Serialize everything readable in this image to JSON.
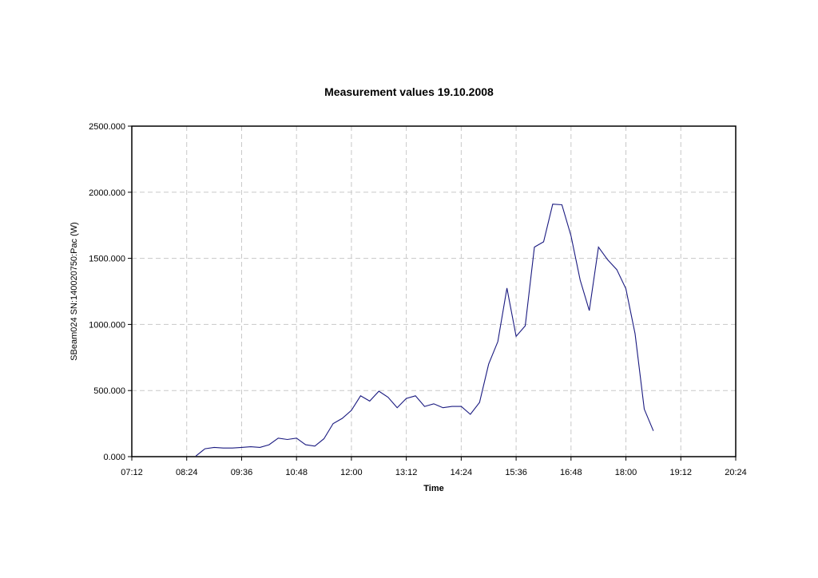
{
  "chart_data": {
    "type": "line",
    "title": "Measurement values 19.10.2008",
    "xlabel": "Time",
    "ylabel": "SBeam024 SN:140020750:Pac (W)",
    "xlim": [
      "07:12",
      "20:24"
    ],
    "ylim": [
      0,
      2500
    ],
    "x_ticks": [
      "07:12",
      "08:24",
      "09:36",
      "10:48",
      "12:00",
      "13:12",
      "14:24",
      "15:36",
      "16:48",
      "18:00",
      "19:12",
      "20:24"
    ],
    "y_ticks": [
      "0.000",
      "500.000",
      "1000.000",
      "1500.000",
      "2000.000",
      "2500.000"
    ],
    "grid": true,
    "legend": "none",
    "series": [
      {
        "color": "#1a1a80",
        "x": [
          "08:36",
          "08:48",
          "09:00",
          "09:12",
          "09:24",
          "09:36",
          "09:48",
          "10:00",
          "10:12",
          "10:24",
          "10:36",
          "10:48",
          "11:00",
          "11:12",
          "11:24",
          "11:36",
          "11:48",
          "12:00",
          "12:12",
          "12:24",
          "12:36",
          "12:48",
          "13:00",
          "13:12",
          "13:24",
          "13:36",
          "13:48",
          "14:00",
          "14:12",
          "14:24",
          "14:36",
          "14:48",
          "15:00",
          "15:12",
          "15:24",
          "15:36",
          "15:48",
          "16:00",
          "16:12",
          "16:24",
          "16:36",
          "16:48",
          "17:00",
          "17:12",
          "17:24",
          "17:36",
          "17:48",
          "18:00",
          "18:12",
          "18:24",
          "18:36"
        ],
        "values": [
          5,
          60,
          70,
          65,
          65,
          70,
          75,
          70,
          90,
          140,
          130,
          140,
          90,
          80,
          135,
          250,
          290,
          350,
          460,
          420,
          495,
          450,
          370,
          440,
          460,
          380,
          400,
          370,
          380,
          380,
          320,
          410,
          700,
          870,
          1275,
          910,
          990,
          1585,
          1625,
          1910,
          1905,
          1670,
          1335,
          1105,
          1585,
          1490,
          1415,
          1270,
          930,
          360,
          195
        ]
      }
    ]
  }
}
